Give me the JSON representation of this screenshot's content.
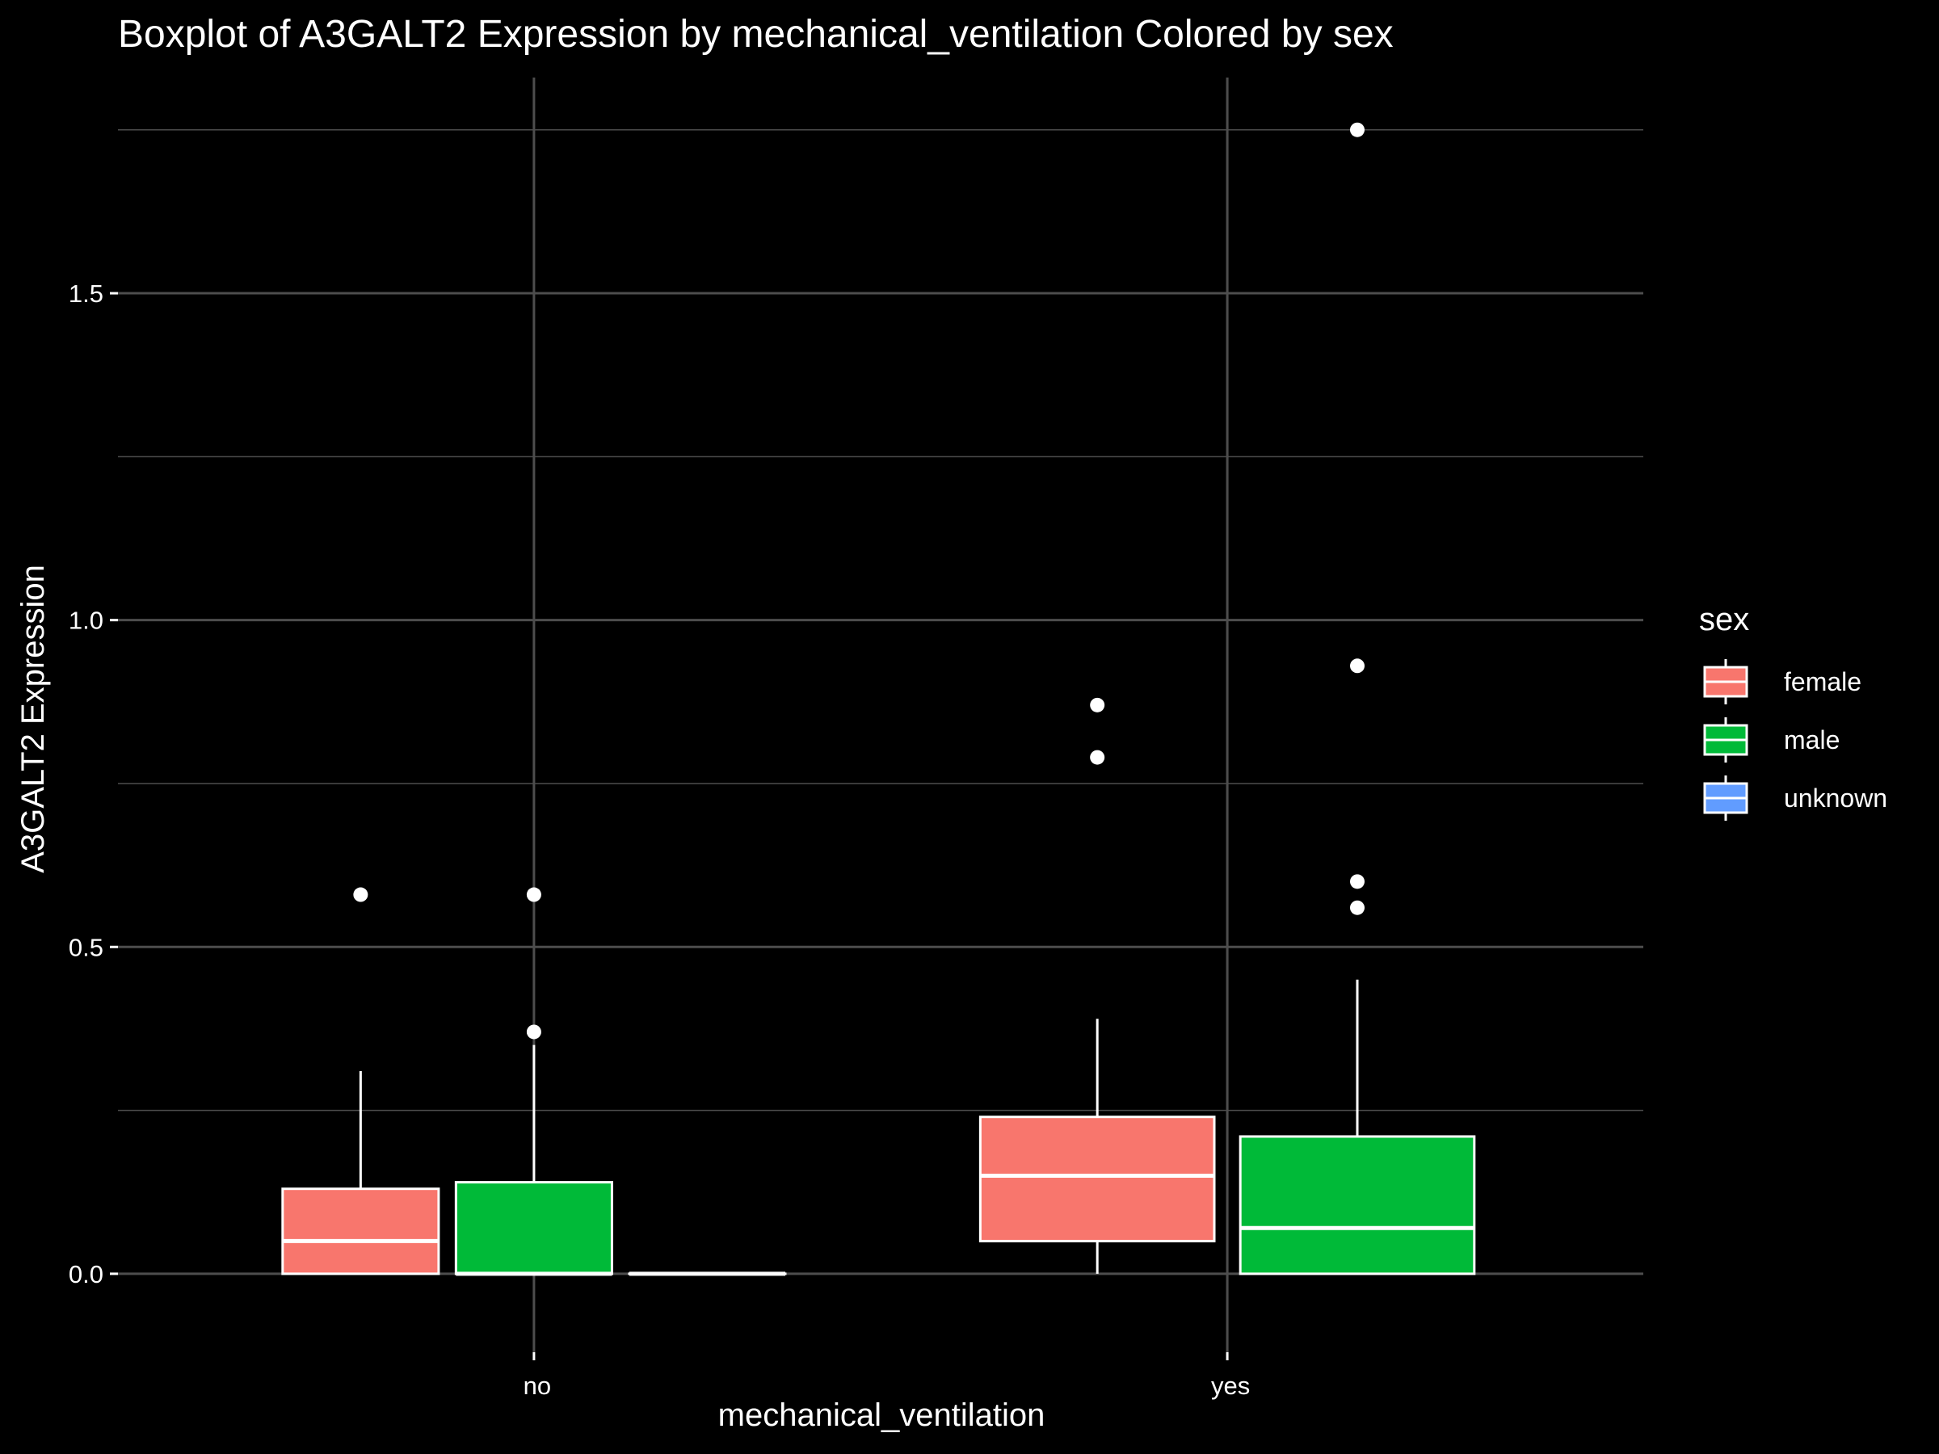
{
  "chart_data": {
    "type": "boxplot",
    "title": "Boxplot of A3GALT2 Expression by mechanical_ventilation Colored by sex",
    "xlabel": "mechanical_ventilation",
    "ylabel": "A3GALT2 Expression",
    "categories": [
      "no",
      "yes"
    ],
    "ylim": [
      -0.12,
      1.83
    ],
    "yticks": [
      0.0,
      0.5,
      1.0,
      1.5
    ],
    "ytick_labels": [
      "0.0",
      "0.5",
      "1.0",
      "1.5"
    ],
    "grid": true,
    "legend": {
      "title": "sex",
      "position": "right",
      "entries": [
        "female",
        "male",
        "unknown"
      ]
    },
    "colors": {
      "female": "#F8766D",
      "male": "#00BA38",
      "unknown": "#619CFF",
      "background": "#000000",
      "grid": "#4d4d4d",
      "outline": "#ffffff"
    },
    "series": [
      {
        "name": "female",
        "boxes": [
          {
            "category": "no",
            "whisker_low": 0.0,
            "q1": 0.0,
            "median": 0.05,
            "q3": 0.13,
            "whisker_high": 0.31,
            "outliers": [
              0.58
            ]
          },
          {
            "category": "yes",
            "whisker_low": 0.0,
            "q1": 0.05,
            "median": 0.15,
            "q3": 0.24,
            "whisker_high": 0.39,
            "outliers": [
              0.79,
              0.87
            ]
          }
        ]
      },
      {
        "name": "male",
        "boxes": [
          {
            "category": "no",
            "whisker_low": 0.0,
            "q1": 0.0,
            "median": 0.0,
            "q3": 0.14,
            "whisker_high": 0.35,
            "outliers": [
              0.37,
              0.58
            ]
          },
          {
            "category": "yes",
            "whisker_low": 0.0,
            "q1": 0.0,
            "median": 0.07,
            "q3": 0.21,
            "whisker_high": 0.45,
            "outliers": [
              0.56,
              0.6,
              0.93,
              1.75
            ]
          }
        ]
      },
      {
        "name": "unknown",
        "boxes": [
          {
            "category": "no",
            "whisker_low": 0.0,
            "q1": 0.0,
            "median": 0.0,
            "q3": 0.0,
            "whisker_high": 0.0,
            "outliers": []
          }
        ]
      }
    ]
  }
}
